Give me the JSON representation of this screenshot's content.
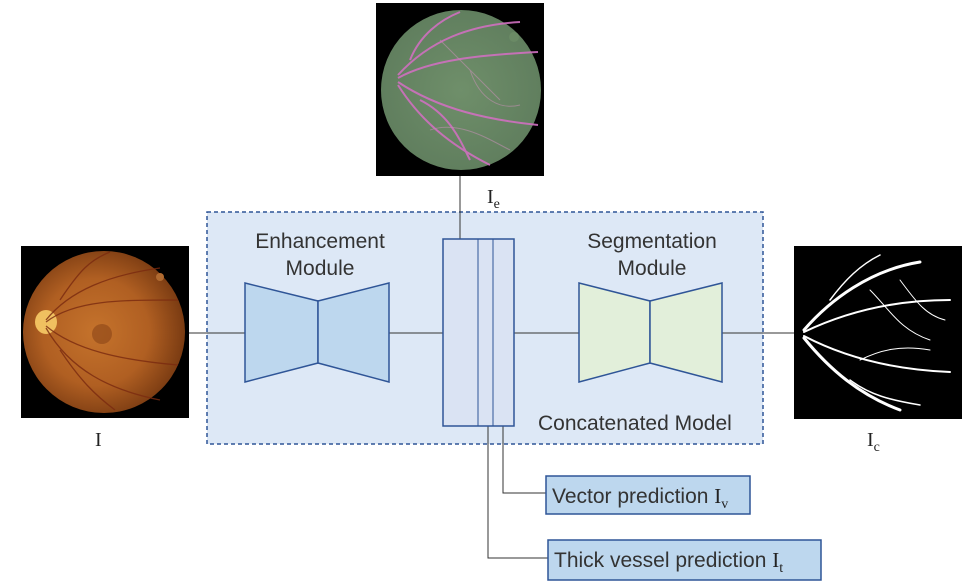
{
  "modules": {
    "enhancement": {
      "line1": "Enhancement",
      "line2": "Module"
    },
    "segmentation": {
      "line1": "Segmentation",
      "line2": "Module"
    },
    "concatenated": "Concatenated Model"
  },
  "images": {
    "input": {
      "symbol": "I",
      "sub": ""
    },
    "enhanced": {
      "symbol": "I",
      "sub": "e"
    },
    "output": {
      "symbol": "I",
      "sub": "c"
    }
  },
  "predictions": {
    "vector": {
      "text": "Vector prediction ",
      "symbol": "I",
      "sub": "v"
    },
    "thick": {
      "text": "Thick vessel prediction ",
      "symbol": "I",
      "sub": "t"
    }
  },
  "colors": {
    "model_fill": "#dde8f6",
    "model_border": "#2f5597",
    "enhancement_fill": "#bdd7ee",
    "segmentation_fill": "#e2efda",
    "shape_border": "#2f5597",
    "prediction_fill": "#bdd7ee"
  }
}
